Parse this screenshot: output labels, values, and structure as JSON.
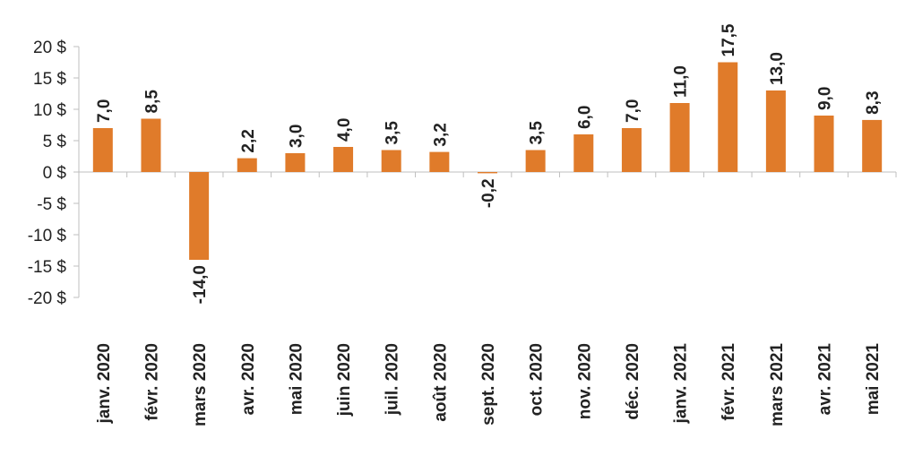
{
  "chart_data": {
    "type": "bar",
    "title": "",
    "xlabel": "",
    "ylabel": "",
    "ylim": [
      -20,
      20
    ],
    "yticks": [
      20,
      15,
      10,
      5,
      0,
      -5,
      -10,
      -15,
      -20
    ],
    "ytick_labels": [
      "20 $",
      "15 $",
      "10 $",
      "5 $",
      "0 $",
      "-5 $",
      "-10 $",
      "-15 $",
      "-20 $"
    ],
    "grid": false,
    "legend": "none",
    "bar_color": "#E07B2A",
    "categories": [
      "janv. 2020",
      "févr. 2020",
      "mars 2020",
      "avr. 2020",
      "mai 2020",
      "juin 2020",
      "juil. 2020",
      "août 2020",
      "sept. 2020",
      "oct. 2020",
      "nov. 2020",
      "déc. 2020",
      "janv. 2021",
      "févr. 2021",
      "mars 2021",
      "avr. 2021",
      "mai 2021"
    ],
    "values": [
      7.0,
      8.5,
      -14.0,
      2.2,
      3.0,
      4.0,
      3.5,
      3.2,
      -0.2,
      3.5,
      6.0,
      7.0,
      11.0,
      17.5,
      13.0,
      9.0,
      8.3
    ],
    "value_labels": [
      "7,0",
      "8,5",
      "-14,0",
      "2,2",
      "3,0",
      "4,0",
      "3,5",
      "3,2",
      "-0,2",
      "3,5",
      "6,0",
      "7,0",
      "11,0",
      "17,5",
      "13,0",
      "9,0",
      "8,3"
    ]
  }
}
